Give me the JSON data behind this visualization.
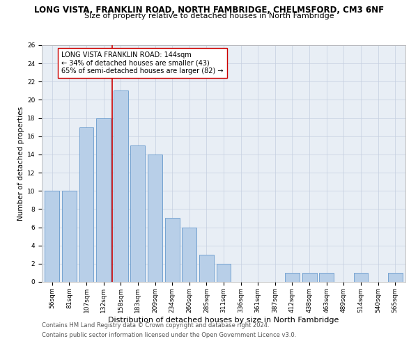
{
  "title": "LONG VISTA, FRANKLIN ROAD, NORTH FAMBRIDGE, CHELMSFORD, CM3 6NF",
  "subtitle": "Size of property relative to detached houses in North Fambridge",
  "xlabel": "Distribution of detached houses by size in North Fambridge",
  "ylabel": "Number of detached properties",
  "categories": [
    "56sqm",
    "81sqm",
    "107sqm",
    "132sqm",
    "158sqm",
    "183sqm",
    "209sqm",
    "234sqm",
    "260sqm",
    "285sqm",
    "311sqm",
    "336sqm",
    "361sqm",
    "387sqm",
    "412sqm",
    "438sqm",
    "463sqm",
    "489sqm",
    "514sqm",
    "540sqm",
    "565sqm"
  ],
  "values": [
    10,
    10,
    17,
    18,
    21,
    15,
    14,
    7,
    6,
    3,
    2,
    0,
    0,
    0,
    1,
    1,
    1,
    0,
    1,
    0,
    1
  ],
  "bar_color": "#b8cfe8",
  "bar_edge_color": "#6699cc",
  "vline_x": 3.5,
  "vline_color": "#cc0000",
  "annotation_text": "LONG VISTA FRANKLIN ROAD: 144sqm\n← 34% of detached houses are smaller (43)\n65% of semi-detached houses are larger (82) →",
  "annotation_box_color": "#ffffff",
  "annotation_box_edge": "#cc0000",
  "ylim": [
    0,
    26
  ],
  "yticks": [
    0,
    2,
    4,
    6,
    8,
    10,
    12,
    14,
    16,
    18,
    20,
    22,
    24,
    26
  ],
  "footer1": "Contains HM Land Registry data © Crown copyright and database right 2024.",
  "footer2": "Contains public sector information licensed under the Open Government Licence v3.0.",
  "title_fontsize": 8.5,
  "subtitle_fontsize": 8.0,
  "xlabel_fontsize": 8.0,
  "ylabel_fontsize": 7.5,
  "tick_fontsize": 6.5,
  "annotation_fontsize": 7.0,
  "footer_fontsize": 6.0,
  "background_color": "#e8eef5"
}
